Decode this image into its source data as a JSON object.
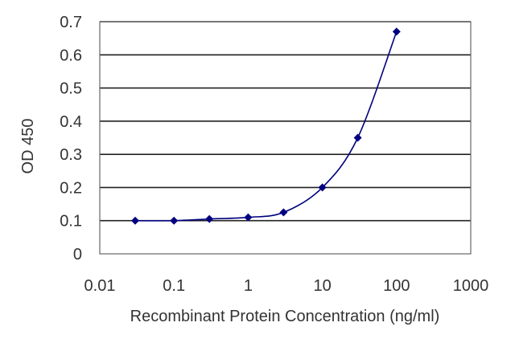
{
  "chart_data": {
    "type": "line",
    "title": "",
    "xlabel": "Recombinant Protein Concentration (ng/ml)",
    "ylabel": "OD 450",
    "x_scale": "log",
    "xlim": [
      0.01,
      1000
    ],
    "ylim": [
      0,
      0.7
    ],
    "x_ticks": [
      0.01,
      0.1,
      1,
      10,
      100,
      1000
    ],
    "x_tick_labels": [
      "0.01",
      "0.1",
      "1",
      "10",
      "100",
      "1000"
    ],
    "y_ticks": [
      0,
      0.1,
      0.2,
      0.3,
      0.4,
      0.5,
      0.6,
      0.7
    ],
    "y_tick_labels": [
      "0",
      "0.1",
      "0.2",
      "0.3",
      "0.4",
      "0.5",
      "0.6",
      "0.7"
    ],
    "grid": "horizontal",
    "legend": "none",
    "series": [
      {
        "x": [
          0.03,
          0.1,
          0.3,
          1,
          3,
          10,
          30,
          100
        ],
        "y": [
          0.1,
          0.1,
          0.105,
          0.11,
          0.125,
          0.2,
          0.35,
          0.67
        ]
      }
    ],
    "colors": {
      "series": "#000080",
      "grid": "#222222",
      "frame": "#666666"
    }
  }
}
